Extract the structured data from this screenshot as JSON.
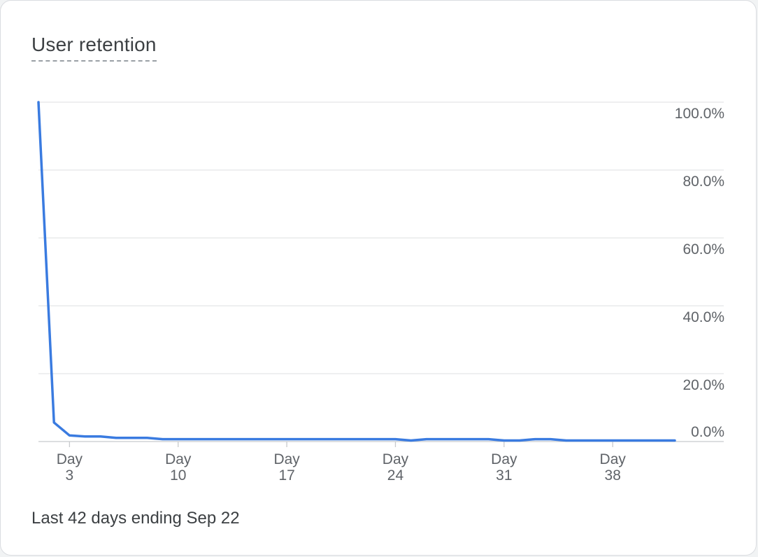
{
  "card": {
    "title": "User retention",
    "footer": "Last 42 days ending Sep 22"
  },
  "chart_data": {
    "type": "line",
    "title": "User retention",
    "xlabel": "",
    "ylabel": "",
    "y_tick_labels": [
      "100.0%",
      "80.0%",
      "60.0%",
      "40.0%",
      "20.0%",
      "0.0%"
    ],
    "x_tick_prefix": "Day",
    "x_tick_days": [
      3,
      10,
      17,
      24,
      31,
      38
    ],
    "ylim": [
      0,
      100
    ],
    "xlim": [
      0,
      41
    ],
    "grid": true,
    "line_color": "#3a7be0",
    "series": [
      {
        "x": [
          0,
          1,
          2,
          3,
          4,
          5,
          6,
          7,
          8,
          9,
          10,
          11,
          12,
          13,
          14,
          15,
          16,
          17,
          18,
          19,
          20,
          21,
          22,
          23,
          24,
          25,
          26,
          27,
          28,
          29,
          30,
          31,
          32,
          33,
          34,
          35,
          36,
          37,
          38,
          39,
          40,
          41
        ],
        "values": [
          100,
          5.6,
          1.8,
          1.5,
          1.5,
          1.1,
          1.1,
          1.1,
          0.7,
          0.7,
          0.7,
          0.7,
          0.7,
          0.7,
          0.7,
          0.7,
          0.7,
          0.7,
          0.7,
          0.7,
          0.7,
          0.7,
          0.7,
          0.7,
          0.3,
          0.7,
          0.7,
          0.7,
          0.7,
          0.7,
          0.3,
          0.3,
          0.7,
          0.7,
          0.3,
          0.3,
          0.3,
          0.3,
          0.3,
          0.3,
          0.3,
          0.3
        ]
      }
    ]
  }
}
